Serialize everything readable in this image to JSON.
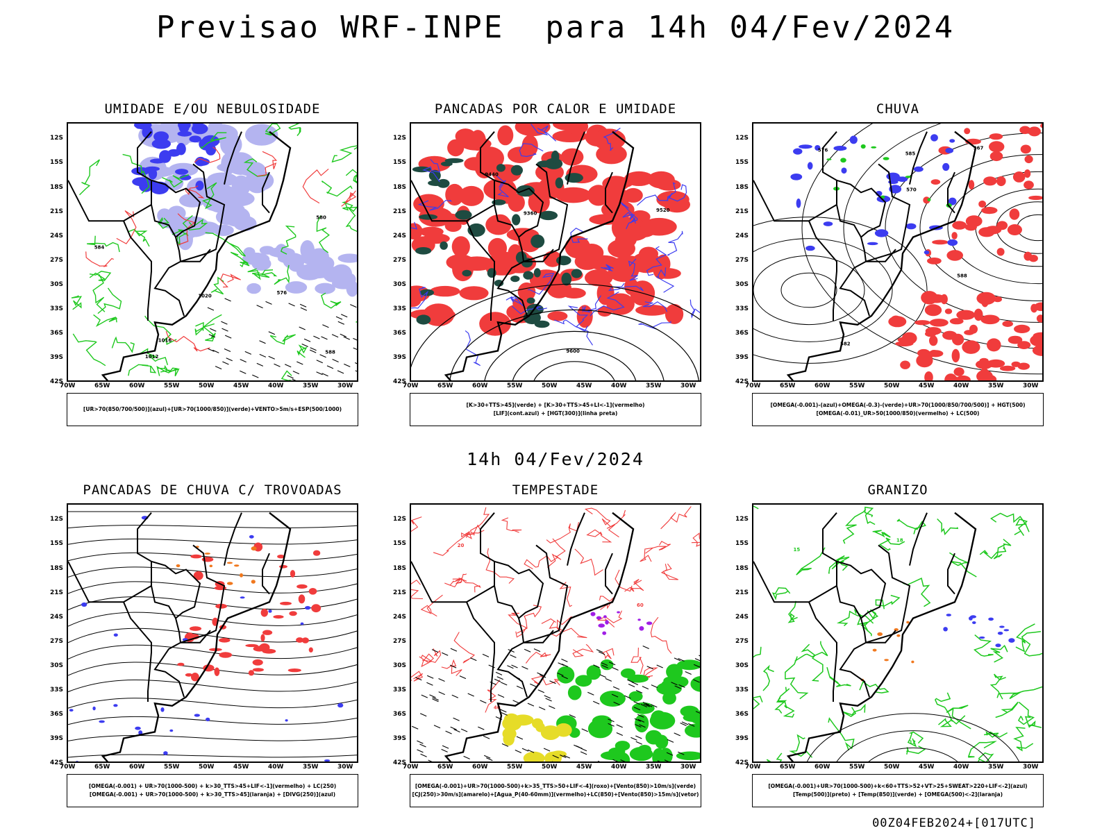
{
  "main_title": "Previsao WRF-INPE  para 14h 04/Fev/2024",
  "mid_title": "14h 04/Fev/2024",
  "footer": "00Z04FEB2024+[017UTC]",
  "lat_labels": [
    "12S",
    "15S",
    "18S",
    "21S",
    "24S",
    "27S",
    "30S",
    "33S",
    "36S",
    "39S",
    "42S"
  ],
  "lon_labels": [
    "70W",
    "65W",
    "60W",
    "55W",
    "50W",
    "45W",
    "40W",
    "35W",
    "30W"
  ],
  "panels": [
    {
      "title": "UMIDADE E/OU NEBULOSIDADE",
      "legend": [
        "[UR>70(850/700/500)](azul)+[UR>70(1000/850)](verde)+VENTO>5m/s+ESP(500/1000)"
      ]
    },
    {
      "title": "PANCADAS POR CALOR E UMIDADE",
      "legend": [
        "[K>30+TTS>45](verde) + [K>30+TTS>45+LI<-1](vermelho)",
        "[LIF](cont.azul) + [HGT(300)](linha preta)"
      ]
    },
    {
      "title": "CHUVA",
      "legend": [
        "[OMEGA(-0.001)-(azul)+OMEGA(-0.3)-(verde)+UR>70(1000/850/700/500)] + HGT(500)",
        "[OMEGA(-0.01)_UR>50(1000/850)(vermelho) + LC(500)"
      ]
    },
    {
      "title": "PANCADAS DE CHUVA C/ TROVOADAS",
      "legend": [
        "[OMEGA(-0.001) + UR>70(1000-500) + k>30_TTS>45+LIF<-1](vermelho) + LC(250)",
        "[OMEGA(-0.001) + UR>70(1000-500) + k>30_TTS>45](laranja) + [DIVG(250)](azul)"
      ]
    },
    {
      "title": "TEMPESTADE",
      "legend": [
        "[OMEGA(-0.001)+UR>70(1000-500)+k>35_TTS>50+LIF<-4](roxo)+[Vento(850)>10m/s](verde)",
        "[CJ(250)>30m/s](amarelo)+[Agua_P(40-60mm)](vermelho)+LC(850)+[Vento(850)>15m/s](vetor)"
      ]
    },
    {
      "title": "GRANIZO",
      "legend": [
        "[OMEGA(-0.001)+UR>70(1000-500)+k<60+TTS>52+VT>25+SWEAT>220+LIF<-2](azul)",
        "[Temp(500)](preto) + [Temp(850)](verde) + [OMEGA(500)<-2](laranja)"
      ]
    }
  ],
  "contour_labels": {
    "p1": [
      "1012",
      "1016",
      "1020",
      "576",
      "580",
      "584",
      "588"
    ],
    "p2": [
      "9600",
      "9520",
      "9440",
      "9360"
    ],
    "p3": [
      "582",
      "576",
      "570",
      "567",
      "585",
      "588"
    ],
    "p5": [
      "40",
      "20",
      "60"
    ],
    "p6": [
      "12",
      "15",
      "18"
    ]
  },
  "colors": {
    "red": "#f03c3c",
    "blue": "#3c3cf0",
    "green": "#1ec81e",
    "lightblue": "#b4b4f0",
    "darkgreen": "#1e4b41",
    "orange": "#f0781e",
    "yellow": "#e6dc28",
    "purple": "#a01ee6"
  }
}
